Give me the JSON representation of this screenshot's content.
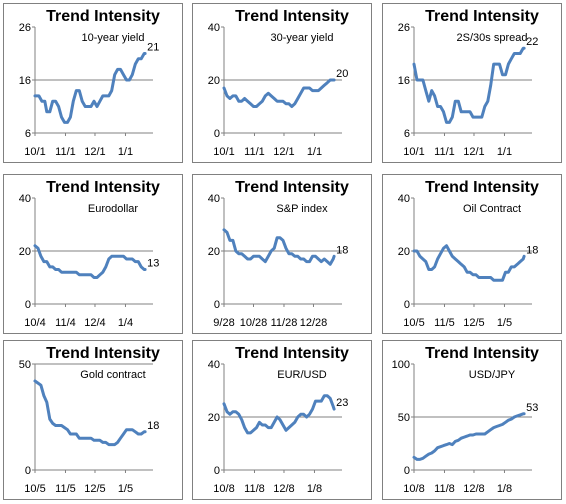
{
  "chart_data": [
    {
      "type": "line",
      "title": "Trend Intensity",
      "subtitle": "10-year yield",
      "ylim": [
        6,
        26
      ],
      "yticks": [
        "6",
        "16",
        "26"
      ],
      "grid_values": [
        16
      ],
      "xticks": [
        "10/1",
        "11/1",
        "12/1",
        "1/1"
      ],
      "x_domain": [
        0,
        120
      ],
      "xtick_positions": [
        0,
        31,
        61,
        92
      ],
      "end_label": "21",
      "series": [
        {
          "x": [
            0,
            4,
            7,
            10,
            12,
            15,
            18,
            21,
            24,
            27,
            30,
            33,
            36,
            39,
            42,
            45,
            48,
            51,
            54,
            57,
            60,
            63,
            66,
            69,
            72,
            75,
            78,
            81,
            84,
            87,
            90,
            93,
            96,
            99,
            102,
            105,
            108,
            111,
            112
          ],
          "y": [
            13,
            13,
            12,
            12,
            10,
            10,
            12,
            12,
            11,
            9,
            8,
            8,
            9,
            12,
            14,
            14,
            12,
            11,
            11,
            11,
            12,
            11,
            12,
            13,
            13,
            13,
            14,
            17,
            18,
            18,
            17,
            16,
            16,
            17,
            19,
            20,
            20,
            21,
            21
          ]
        }
      ]
    },
    {
      "type": "line",
      "title": "Trend Intensity",
      "subtitle": "30-year yield",
      "ylim": [
        0,
        40
      ],
      "yticks": [
        "0",
        "20",
        "40"
      ],
      "grid_values": [
        20
      ],
      "xticks": [
        "10/1",
        "11/1",
        "12/1",
        "1/1"
      ],
      "x_domain": [
        0,
        120
      ],
      "xtick_positions": [
        0,
        31,
        61,
        92
      ],
      "end_label": "20",
      "series": [
        {
          "x": [
            0,
            3,
            6,
            9,
            12,
            15,
            18,
            21,
            24,
            27,
            30,
            33,
            36,
            39,
            42,
            45,
            48,
            51,
            54,
            57,
            60,
            63,
            66,
            69,
            72,
            75,
            78,
            81,
            84,
            87,
            90,
            93,
            96,
            99,
            102,
            105,
            108,
            111,
            112
          ],
          "y": [
            17,
            14,
            13,
            14,
            14,
            12,
            12,
            13,
            12,
            11,
            10,
            10,
            11,
            12,
            14,
            15,
            14,
            13,
            12,
            12,
            12,
            11,
            11,
            10,
            11,
            13,
            15,
            17,
            17,
            17,
            16,
            16,
            16,
            17,
            18,
            19,
            20,
            20,
            20
          ]
        }
      ]
    },
    {
      "type": "line",
      "title": "Trend Intensity",
      "subtitle": "2S/30s  spread",
      "ylim": [
        6,
        26
      ],
      "yticks": [
        "6",
        "16",
        "26"
      ],
      "grid_values": [
        16
      ],
      "xticks": [
        "10/1",
        "11/1",
        "12/1",
        "1/1"
      ],
      "x_domain": [
        0,
        120
      ],
      "xtick_positions": [
        0,
        31,
        61,
        92
      ],
      "end_label": "22",
      "series": [
        {
          "x": [
            0,
            3,
            6,
            9,
            12,
            15,
            18,
            21,
            24,
            27,
            30,
            33,
            36,
            39,
            42,
            45,
            48,
            51,
            54,
            57,
            60,
            63,
            66,
            69,
            72,
            75,
            78,
            81,
            84,
            87,
            90,
            93,
            96,
            99,
            102,
            105,
            108,
            111,
            112
          ],
          "y": [
            19,
            16,
            16,
            16,
            14,
            12,
            14,
            13,
            11,
            11,
            10,
            8,
            8,
            9,
            12,
            12,
            10,
            10,
            10,
            10,
            9,
            9,
            9,
            9,
            11,
            12,
            15,
            19,
            19,
            19,
            17,
            17,
            19,
            20,
            21,
            21,
            21,
            22,
            22
          ]
        }
      ]
    },
    {
      "type": "line",
      "title": "Trend Intensity",
      "subtitle": "Eurodollar",
      "ylim": [
        0,
        40
      ],
      "yticks": [
        "0",
        "20",
        "40"
      ],
      "grid_values": [
        20
      ],
      "xticks": [
        "10/4",
        "11/4",
        "12/4",
        "1/4"
      ],
      "x_domain": [
        0,
        120
      ],
      "xtick_positions": [
        0,
        31,
        61,
        92
      ],
      "end_label": "13",
      "series": [
        {
          "x": [
            0,
            3,
            6,
            9,
            12,
            15,
            18,
            21,
            24,
            27,
            30,
            33,
            36,
            39,
            42,
            45,
            48,
            51,
            54,
            57,
            60,
            63,
            66,
            69,
            72,
            75,
            78,
            81,
            84,
            87,
            90,
            93,
            96,
            99,
            102,
            105,
            108,
            111,
            112
          ],
          "y": [
            22,
            21,
            18,
            16,
            16,
            14,
            14,
            13,
            13,
            12,
            12,
            12,
            12,
            12,
            12,
            11,
            11,
            11,
            11,
            11,
            10,
            10,
            11,
            12,
            14,
            17,
            18,
            18,
            18,
            18,
            18,
            17,
            17,
            17,
            16,
            16,
            14,
            13,
            13
          ]
        }
      ]
    },
    {
      "type": "line",
      "title": "Trend Intensity",
      "subtitle": "S&P index",
      "ylim": [
        0,
        40
      ],
      "yticks": [
        "0",
        "20",
        "40"
      ],
      "grid_values": [
        20
      ],
      "xticks": [
        "9/28",
        "10/28",
        "11/28",
        "12/28"
      ],
      "x_domain": [
        0,
        120
      ],
      "xtick_positions": [
        0,
        30,
        61,
        91
      ],
      "end_label": "18",
      "series": [
        {
          "x": [
            0,
            3,
            6,
            9,
            12,
            15,
            18,
            21,
            24,
            27,
            30,
            33,
            36,
            39,
            42,
            45,
            48,
            51,
            54,
            57,
            60,
            63,
            66,
            69,
            72,
            75,
            78,
            81,
            84,
            87,
            90,
            93,
            96,
            99,
            102,
            105,
            108,
            111,
            112
          ],
          "y": [
            28,
            27,
            24,
            24,
            20,
            19,
            19,
            18,
            17,
            17,
            18,
            18,
            18,
            17,
            16,
            18,
            20,
            21,
            25,
            25,
            24,
            21,
            19,
            19,
            18,
            18,
            17,
            17,
            16,
            16,
            18,
            18,
            17,
            16,
            17,
            16,
            15,
            17,
            18
          ]
        }
      ]
    },
    {
      "type": "line",
      "title": "Trend Intensity",
      "subtitle": "Oil  Contract",
      "ylim": [
        0,
        40
      ],
      "yticks": [
        "0",
        "20",
        "40"
      ],
      "grid_values": [
        20
      ],
      "xticks": [
        "10/5",
        "11/5",
        "12/5",
        "1/5"
      ],
      "x_domain": [
        0,
        120
      ],
      "xtick_positions": [
        0,
        31,
        61,
        92
      ],
      "end_label": "18",
      "series": [
        {
          "x": [
            0,
            3,
            6,
            9,
            12,
            15,
            18,
            21,
            24,
            27,
            30,
            33,
            36,
            39,
            42,
            45,
            48,
            51,
            54,
            57,
            60,
            63,
            66,
            69,
            72,
            75,
            78,
            81,
            84,
            87,
            90,
            93,
            96,
            99,
            102,
            105,
            108,
            111,
            112
          ],
          "y": [
            20,
            20,
            18,
            17,
            16,
            13,
            13,
            14,
            17,
            19,
            21,
            22,
            20,
            18,
            17,
            16,
            15,
            14,
            12,
            12,
            11,
            11,
            10,
            10,
            10,
            10,
            10,
            9,
            9,
            9,
            9,
            12,
            12,
            14,
            14,
            15,
            16,
            17,
            18
          ]
        }
      ]
    },
    {
      "type": "line",
      "title": "Trend Intensity",
      "subtitle": "Gold  contract",
      "ylim": [
        0,
        50
      ],
      "yticks": [
        "0",
        "50"
      ],
      "grid_values": [
        50
      ],
      "xticks": [
        "10/5",
        "11/5",
        "12/5",
        "1/5"
      ],
      "x_domain": [
        0,
        120
      ],
      "xtick_positions": [
        0,
        31,
        61,
        92
      ],
      "end_label": "18",
      "series": [
        {
          "x": [
            0,
            3,
            6,
            9,
            12,
            15,
            18,
            21,
            24,
            27,
            30,
            33,
            36,
            39,
            42,
            45,
            48,
            51,
            54,
            57,
            60,
            63,
            66,
            69,
            72,
            75,
            78,
            81,
            84,
            87,
            90,
            93,
            96,
            99,
            102,
            105,
            108,
            111,
            112
          ],
          "y": [
            42,
            41,
            40,
            35,
            32,
            24,
            22,
            21,
            21,
            21,
            20,
            19,
            17,
            17,
            17,
            15,
            15,
            15,
            15,
            15,
            14,
            14,
            14,
            13,
            13,
            12,
            12,
            12,
            13,
            15,
            17,
            19,
            19,
            19,
            18,
            17,
            17,
            18,
            18
          ]
        }
      ]
    },
    {
      "type": "line",
      "title": "Trend Intensity",
      "subtitle": "EUR/USD",
      "ylim": [
        0,
        40
      ],
      "yticks": [
        "0",
        "20",
        "40"
      ],
      "grid_values": [
        20
      ],
      "xticks": [
        "10/8",
        "11/8",
        "12/8",
        "1/8"
      ],
      "x_domain": [
        0,
        120
      ],
      "xtick_positions": [
        0,
        31,
        61,
        92
      ],
      "end_label": "23",
      "series": [
        {
          "x": [
            0,
            3,
            6,
            9,
            12,
            15,
            18,
            21,
            24,
            27,
            30,
            33,
            36,
            39,
            42,
            45,
            48,
            51,
            54,
            57,
            60,
            63,
            66,
            69,
            72,
            75,
            78,
            81,
            84,
            87,
            90,
            93,
            96,
            99,
            102,
            105,
            108,
            111,
            112
          ],
          "y": [
            25,
            22,
            21,
            22,
            22,
            21,
            19,
            16,
            14,
            14,
            15,
            16,
            18,
            17,
            17,
            16,
            16,
            18,
            20,
            19,
            17,
            15,
            16,
            17,
            18,
            20,
            21,
            21,
            20,
            21,
            23,
            26,
            26,
            26,
            28,
            28,
            27,
            24,
            23
          ]
        }
      ]
    },
    {
      "type": "line",
      "title": "Trend Intensity",
      "subtitle": "USD/JPY",
      "ylim": [
        0,
        100
      ],
      "yticks": [
        "0",
        "50",
        "100"
      ],
      "grid_values": [
        50
      ],
      "xticks": [
        "10/8",
        "11/8",
        "12/8",
        "1/8"
      ],
      "x_domain": [
        0,
        120
      ],
      "xtick_positions": [
        0,
        31,
        61,
        92
      ],
      "end_label": "53",
      "series": [
        {
          "x": [
            0,
            3,
            6,
            9,
            12,
            15,
            18,
            21,
            24,
            27,
            30,
            33,
            36,
            39,
            42,
            45,
            48,
            51,
            54,
            57,
            60,
            63,
            66,
            69,
            72,
            75,
            78,
            81,
            84,
            87,
            90,
            93,
            96,
            99,
            102,
            105,
            108,
            111,
            112
          ],
          "y": [
            12,
            10,
            10,
            11,
            13,
            15,
            16,
            18,
            21,
            22,
            23,
            24,
            25,
            24,
            27,
            28,
            30,
            31,
            32,
            33,
            33,
            34,
            34,
            34,
            34,
            36,
            38,
            40,
            41,
            42,
            43,
            45,
            47,
            48,
            50,
            51,
            52,
            53,
            53
          ]
        }
      ]
    }
  ]
}
